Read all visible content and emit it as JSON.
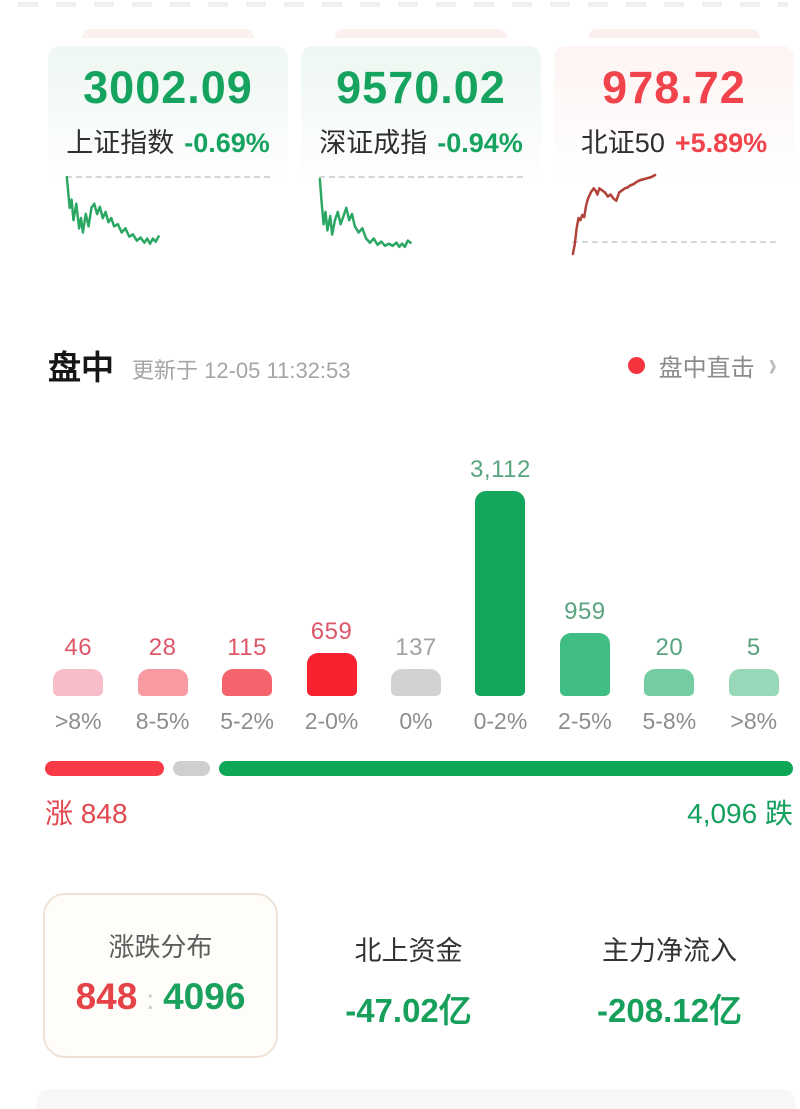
{
  "indices": [
    {
      "value": "3002.09",
      "name": "上证指数",
      "change": "-0.69%",
      "direction": "down",
      "spark": [
        [
          3,
          4
        ],
        [
          6,
          34
        ],
        [
          8,
          26
        ],
        [
          10,
          46
        ],
        [
          13,
          30
        ],
        [
          16,
          54
        ],
        [
          18,
          44
        ],
        [
          20,
          58
        ],
        [
          23,
          40
        ],
        [
          26,
          52
        ],
        [
          29,
          34
        ],
        [
          32,
          30
        ],
        [
          35,
          40
        ],
        [
          38,
          33
        ],
        [
          41,
          44
        ],
        [
          44,
          38
        ],
        [
          47,
          48
        ],
        [
          50,
          44
        ],
        [
          53,
          52
        ],
        [
          57,
          50
        ],
        [
          61,
          58
        ],
        [
          65,
          54
        ],
        [
          69,
          62
        ],
        [
          73,
          60
        ],
        [
          77,
          66
        ],
        [
          81,
          63
        ],
        [
          85,
          68
        ],
        [
          88,
          64
        ],
        [
          91,
          69
        ],
        [
          94,
          64
        ],
        [
          97,
          67
        ],
        [
          100,
          62
        ]
      ]
    },
    {
      "value": "9570.02",
      "name": "深证成指",
      "change": "-0.94%",
      "direction": "down",
      "spark": [
        [
          3,
          6
        ],
        [
          5,
          30
        ],
        [
          7,
          50
        ],
        [
          9,
          38
        ],
        [
          11,
          56
        ],
        [
          14,
          42
        ],
        [
          16,
          60
        ],
        [
          19,
          46
        ],
        [
          22,
          38
        ],
        [
          25,
          50
        ],
        [
          28,
          42
        ],
        [
          31,
          34
        ],
        [
          34,
          46
        ],
        [
          37,
          40
        ],
        [
          40,
          52
        ],
        [
          44,
          58
        ],
        [
          48,
          54
        ],
        [
          52,
          64
        ],
        [
          56,
          68
        ],
        [
          60,
          64
        ],
        [
          64,
          70
        ],
        [
          68,
          67
        ],
        [
          72,
          71
        ],
        [
          76,
          69
        ],
        [
          80,
          71
        ],
        [
          84,
          68
        ],
        [
          87,
          72
        ],
        [
          90,
          69
        ],
        [
          93,
          72
        ],
        [
          96,
          66
        ],
        [
          99,
          68
        ]
      ]
    },
    {
      "value": "978.72",
      "name": "北证50",
      "change": "+5.89%",
      "direction": "up",
      "spark": [
        [
          3,
          79
        ],
        [
          5,
          70
        ],
        [
          7,
          54
        ],
        [
          9,
          44
        ],
        [
          11,
          46
        ],
        [
          13,
          41
        ],
        [
          15,
          43
        ],
        [
          17,
          32
        ],
        [
          19,
          25
        ],
        [
          22,
          19
        ],
        [
          25,
          15
        ],
        [
          27,
          17
        ],
        [
          29,
          21
        ],
        [
          31,
          15
        ],
        [
          34,
          17
        ],
        [
          37,
          19
        ],
        [
          40,
          23
        ],
        [
          43,
          21
        ],
        [
          46,
          25
        ],
        [
          49,
          27
        ],
        [
          52,
          19
        ],
        [
          55,
          17
        ],
        [
          58,
          15
        ],
        [
          61,
          14
        ],
        [
          64,
          12
        ],
        [
          67,
          11
        ],
        [
          70,
          9
        ],
        [
          74,
          7
        ],
        [
          78,
          6
        ],
        [
          82,
          5
        ],
        [
          86,
          4
        ],
        [
          90,
          2
        ]
      ]
    }
  ],
  "section": {
    "title": "盘中",
    "updated": "更新于 12-05 11:32:53",
    "live_link": "盘中直击",
    "chevron": "›"
  },
  "chart_data": {
    "type": "bar",
    "categories": [
      ">8%",
      "8-5%",
      "5-2%",
      "2-0%",
      "0%",
      "0-2%",
      "2-5%",
      "5-8%",
      ">8%"
    ],
    "values": [
      46,
      28,
      115,
      659,
      137,
      3112,
      959,
      20,
      5
    ],
    "value_labels": [
      "46",
      "28",
      "115",
      "659",
      "137",
      "3,112",
      "959",
      "20",
      "5"
    ],
    "bar_colors": [
      "#f7bdc8",
      "#f79aa2",
      "#f5636d",
      "#f7212f",
      "#d2d2d2",
      "#13a65c",
      "#3fbd83",
      "#74cca1",
      "#97d8b8"
    ],
    "label_colors": [
      "#dc5768",
      "#dc5768",
      "#dc5768",
      "#dc5768",
      "#a2a2a2",
      "#59a37f",
      "#59a37f",
      "#59a37f",
      "#59a37f"
    ],
    "ylim": [
      0,
      3112
    ],
    "grid": false,
    "legend": false
  },
  "ratio_bar": {
    "up_count": 848,
    "flat_count": 137,
    "down_count": 4096,
    "up_color": "#f93b47",
    "flat_color": "#cfcfcf",
    "down_color": "#0ea757"
  },
  "updown": {
    "up_label": "涨",
    "up_value": "848",
    "down_value": "4,096",
    "down_label": "跌"
  },
  "stats": {
    "distribution": {
      "label": "涨跌分布",
      "up": "848",
      "separator": ":",
      "down": "4096"
    },
    "northbound": {
      "label": "北上资金",
      "value": "-47.02亿"
    },
    "main_inflow": {
      "label": "主力净流入",
      "value": "-208.12亿"
    }
  },
  "colors": {
    "green": "#16a35f",
    "red": "#f1434b",
    "spark_green": "#2aa763",
    "spark_red": "#b0423a",
    "dot_red": "#f5333f"
  }
}
